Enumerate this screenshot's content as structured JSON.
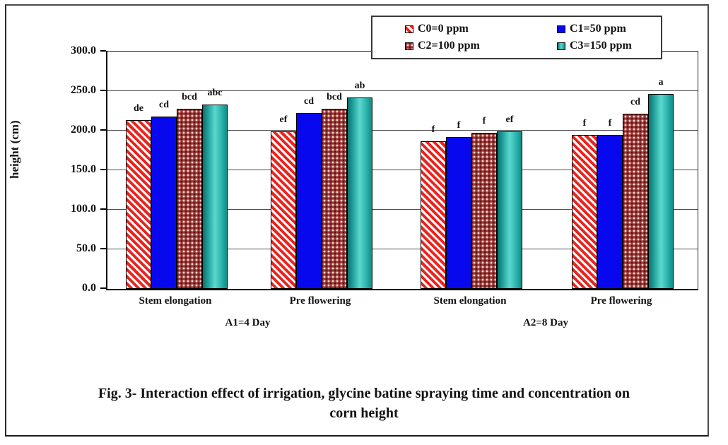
{
  "figure": {
    "caption": "Fig. 3- Interaction effect of irrigation, glycine batine spraying time and concentration on corn height"
  },
  "chart_data": {
    "type": "bar",
    "title": "",
    "xlabel": "",
    "ylabel": "height (cm)",
    "ylim": [
      0,
      300
    ],
    "ytick_interval": 50,
    "ytick_labels": [
      "300.0",
      "250.0",
      "200.0",
      "150.0",
      "100.0",
      "50.0",
      "0.0"
    ],
    "grid": true,
    "legend_position": "top-right",
    "categories": [
      "Stem elongation",
      "Pre flowering",
      "Stem elongation",
      "Pre flowering"
    ],
    "category_groups": [
      {
        "label": "A1=4 Day",
        "spans": [
          0,
          1
        ]
      },
      {
        "label": "A2=8 Day",
        "spans": [
          2,
          3
        ]
      }
    ],
    "series": [
      {
        "name": "C0=0 ppm",
        "style": "red-hatch",
        "color": "#e8241f",
        "values": [
          213,
          199,
          187,
          195
        ]
      },
      {
        "name": "C1=50 ppm",
        "style": "solid-blue",
        "color": "#0808ee",
        "values": [
          218,
          222,
          192,
          195
        ]
      },
      {
        "name": "C2=100 ppm",
        "style": "darkred-dots",
        "color": "#9c3a38",
        "values": [
          228,
          228,
          197,
          221
        ]
      },
      {
        "name": "C3=150 ppm",
        "style": "teal-gradient",
        "color": "#2fb5ae",
        "values": [
          233,
          242,
          199,
          246
        ]
      }
    ],
    "bar_labels": [
      [
        "de",
        "cd",
        "bcd",
        "abc"
      ],
      [
        "ef",
        "cd",
        "bcd",
        "ab"
      ],
      [
        "f",
        "f",
        "f",
        "ef"
      ],
      [
        "f",
        "f",
        "cd",
        "a"
      ]
    ]
  }
}
